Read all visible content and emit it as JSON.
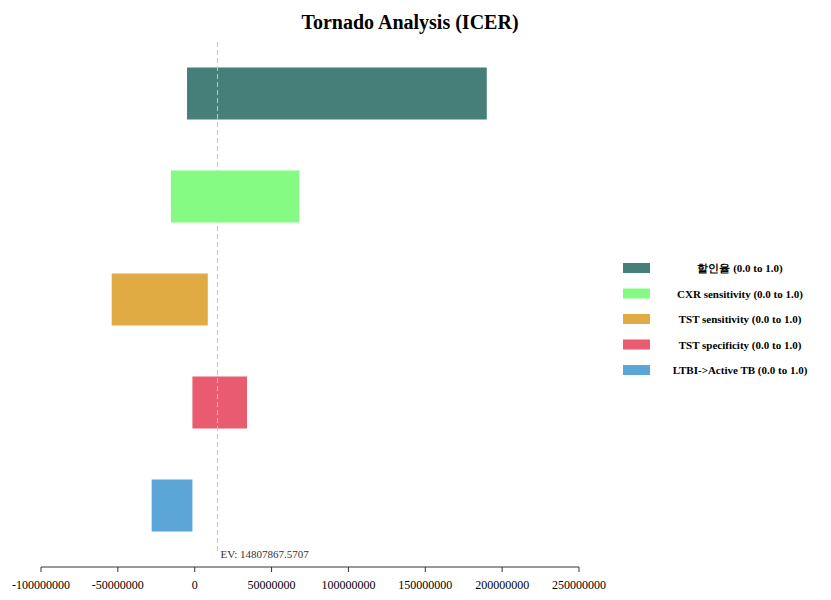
{
  "chart_data": {
    "type": "bar",
    "orientation": "horizontal",
    "title": "Tornado Analysis (ICER)",
    "categories": [
      "할인율 (0.0 to 1.0)",
      "CXR sensitivity (0.0 to 1.0)",
      "TST sensitivity (0.0 to 1.0)",
      "TST specificity (0.0 to 1.0)",
      "LTBI->Active TB (0.0 to 1.0)"
    ],
    "low": [
      -5000000,
      -15500000,
      -54000000,
      -1500000,
      -28000000
    ],
    "high": [
      190000000,
      68000000,
      8500000,
      34000000,
      -1500000
    ],
    "colors": [
      "#467f7a",
      "#86fb84",
      "#e1ab44",
      "#e95b6e",
      "#5ba6d6"
    ],
    "xlim": [
      -100000000,
      250000000
    ],
    "xticks": [
      -100000000,
      -50000000,
      0,
      50000000,
      100000000,
      150000000,
      200000000,
      250000000
    ],
    "ev": 14807867.5707,
    "ev_label": "EV: 14807867.5707",
    "legend": "right"
  }
}
